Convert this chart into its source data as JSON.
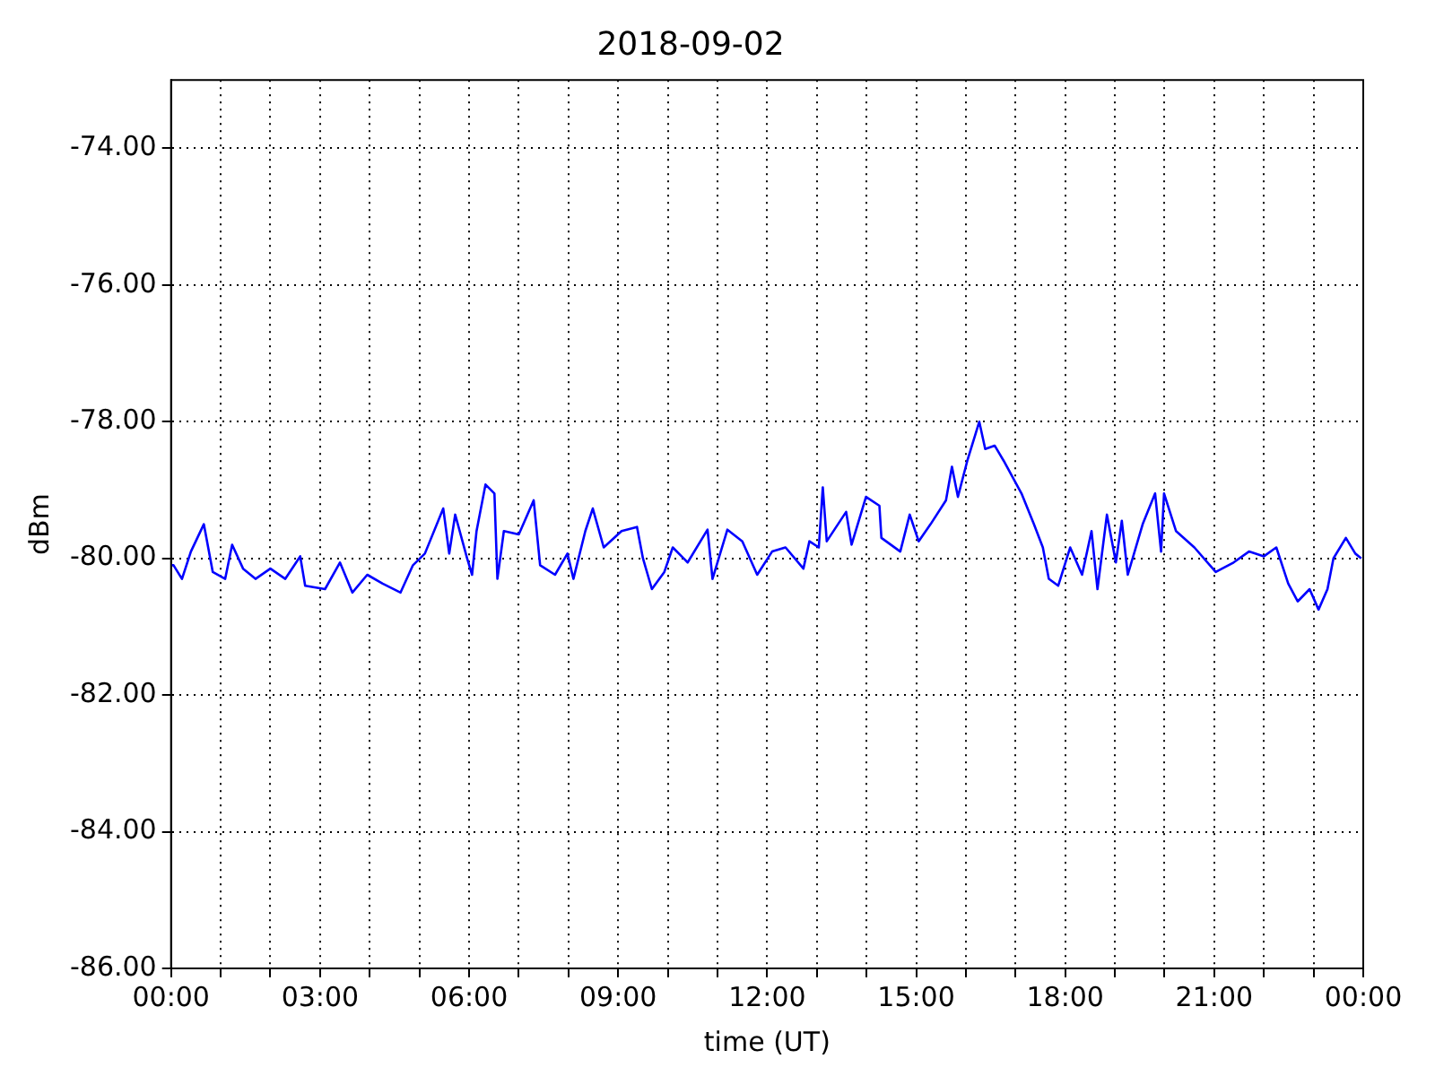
{
  "chart_data": {
    "type": "line",
    "title": "2018-09-02",
    "xlabel": "time (UT)",
    "ylabel": "dBm",
    "xlim": [
      0,
      24
    ],
    "xticks": [
      {
        "value": 0,
        "label": "00:00"
      },
      {
        "value": 1,
        "label": null
      },
      {
        "value": 2,
        "label": null
      },
      {
        "value": 3,
        "label": "03:00"
      },
      {
        "value": 4,
        "label": null
      },
      {
        "value": 5,
        "label": null
      },
      {
        "value": 6,
        "label": "06:00"
      },
      {
        "value": 7,
        "label": null
      },
      {
        "value": 8,
        "label": null
      },
      {
        "value": 9,
        "label": "09:00"
      },
      {
        "value": 10,
        "label": null
      },
      {
        "value": 11,
        "label": null
      },
      {
        "value": 12,
        "label": "12:00"
      },
      {
        "value": 13,
        "label": null
      },
      {
        "value": 14,
        "label": null
      },
      {
        "value": 15,
        "label": "15:00"
      },
      {
        "value": 16,
        "label": null
      },
      {
        "value": 17,
        "label": null
      },
      {
        "value": 18,
        "label": "18:00"
      },
      {
        "value": 19,
        "label": null
      },
      {
        "value": 20,
        "label": null
      },
      {
        "value": 21,
        "label": "21:00"
      },
      {
        "value": 22,
        "label": null
      },
      {
        "value": 23,
        "label": null
      },
      {
        "value": 24,
        "label": "00:00"
      }
    ],
    "ylim": [
      -86,
      -73
    ],
    "yticks": [
      {
        "value": -86,
        "label": "-86.00"
      },
      {
        "value": -84,
        "label": "-84.00"
      },
      {
        "value": -82,
        "label": "-82.00"
      },
      {
        "value": -80,
        "label": "-80.00"
      },
      {
        "value": -78,
        "label": "-78.00"
      },
      {
        "value": -76,
        "label": "-76.00"
      },
      {
        "value": -74,
        "label": "-74.00"
      }
    ],
    "grid": true,
    "legend": false,
    "marker": "none",
    "line_style": "solid",
    "series": [
      {
        "color": "#0000ff",
        "x": [
          0,
          0.05,
          0.22,
          0.4,
          0.66,
          0.84,
          1.09,
          1.23,
          1.45,
          1.7,
          2.0,
          2.3,
          2.6,
          2.7,
          3.1,
          3.4,
          3.65,
          3.95,
          4.26,
          4.62,
          4.87,
          5.11,
          5.48,
          5.6,
          5.72,
          5.96,
          6.06,
          6.15,
          6.33,
          6.51,
          6.57,
          6.7,
          7.0,
          7.06,
          7.3,
          7.43,
          7.73,
          7.98,
          8.1,
          8.34,
          8.49,
          8.71,
          9.07,
          9.38,
          9.5,
          9.68,
          9.93,
          10.1,
          10.4,
          10.8,
          10.9,
          11.2,
          11.5,
          11.8,
          12.1,
          12.37,
          12.73,
          12.85,
          13.04,
          13.12,
          13.2,
          13.59,
          13.7,
          13.99,
          14.26,
          14.3,
          14.68,
          14.87,
          15.05,
          15.29,
          15.6,
          15.72,
          15.84,
          16.03,
          16.27,
          16.39,
          16.58,
          16.76,
          17.12,
          17.37,
          17.55,
          17.67,
          17.86,
          18.1,
          18.34,
          18.53,
          18.65,
          18.84,
          19.02,
          19.14,
          19.26,
          19.56,
          19.81,
          19.93,
          19.99,
          20.23,
          20.6,
          21.03,
          21.39,
          21.7,
          22.0,
          22.25,
          22.49,
          22.68,
          22.92,
          23.1,
          23.28,
          23.4,
          23.65,
          23.84,
          23.96
        ],
        "values": [
          -80.1,
          -80.1,
          -80.3,
          -79.9,
          -79.5,
          -80.2,
          -80.3,
          -79.8,
          -80.15,
          -80.3,
          -80.15,
          -80.3,
          -79.97,
          -80.4,
          -80.45,
          -80.06,
          -80.5,
          -80.24,
          -80.37,
          -80.5,
          -80.1,
          -79.93,
          -79.27,
          -79.93,
          -79.36,
          -80.0,
          -80.24,
          -79.6,
          -78.92,
          -79.05,
          -80.3,
          -79.6,
          -79.65,
          -79.55,
          -79.15,
          -80.1,
          -80.24,
          -79.93,
          -80.3,
          -79.6,
          -79.27,
          -79.84,
          -79.6,
          -79.54,
          -80.0,
          -80.45,
          -80.2,
          -79.84,
          -80.06,
          -79.58,
          -80.3,
          -79.58,
          -79.75,
          -80.24,
          -79.9,
          -79.84,
          -80.15,
          -79.75,
          -79.84,
          -78.96,
          -79.75,
          -79.32,
          -79.8,
          -79.1,
          -79.23,
          -79.7,
          -79.9,
          -79.36,
          -79.75,
          -79.5,
          -79.15,
          -78.66,
          -79.1,
          -78.57,
          -78.0,
          -78.4,
          -78.35,
          -78.57,
          -79.05,
          -79.5,
          -79.84,
          -80.3,
          -80.4,
          -79.84,
          -80.24,
          -79.6,
          -80.45,
          -79.36,
          -80.06,
          -79.45,
          -80.24,
          -79.5,
          -79.05,
          -79.9,
          -79.05,
          -79.6,
          -79.84,
          -80.2,
          -80.06,
          -79.9,
          -79.97,
          -79.84,
          -80.37,
          -80.63,
          -80.45,
          -80.75,
          -80.45,
          -80.0,
          -79.7,
          -79.93,
          -80.0
        ]
      }
    ]
  }
}
